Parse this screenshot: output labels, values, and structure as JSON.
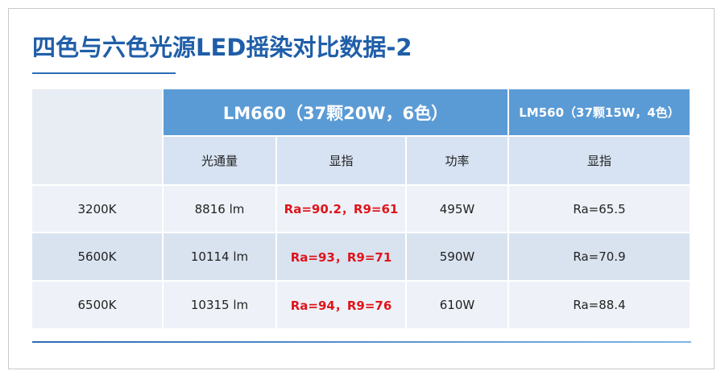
{
  "title": "四色与六色光源LED摇染对比数据-2",
  "table": {
    "group_headers": [
      "LM660（37颗20W，6色）",
      "LM560（37颗15W，4色）"
    ],
    "columns": [
      "光通量",
      "显指",
      "功率",
      "显指"
    ],
    "rows": [
      [
        "3200K",
        "8816 lm",
        "Ra=90.2，R9=61",
        "495W",
        "Ra=65.5"
      ],
      [
        "5600K",
        "10114 lm",
        "Ra=93，R9=71",
        "590W",
        "Ra=70.9"
      ],
      [
        "6500K",
        "10315 lm",
        "Ra=94，R9=76",
        "610W",
        "Ra=88.4"
      ]
    ]
  }
}
